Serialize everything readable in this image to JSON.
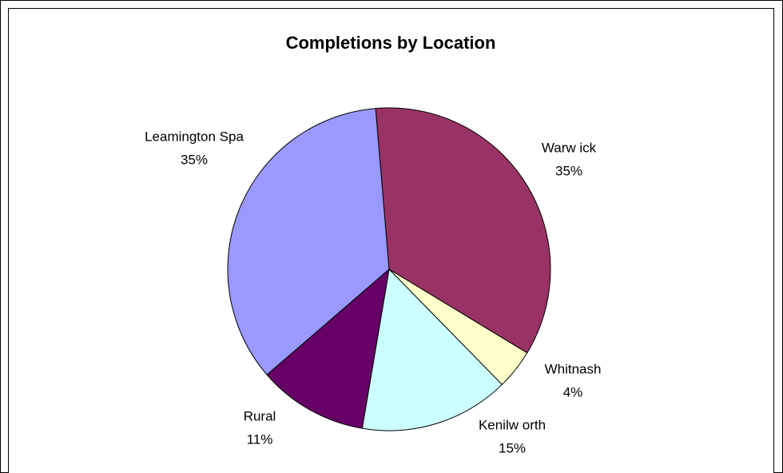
{
  "chart_data": {
    "type": "pie",
    "title": "Completions by Location",
    "categories": [
      "Warw ick",
      "Whitnash",
      "Kenilw orth",
      "Rural",
      "Leamington Spa"
    ],
    "values": [
      35,
      4,
      15,
      11,
      35
    ],
    "value_labels": [
      "35%",
      "4%",
      "15%",
      "11%",
      "35%"
    ],
    "colors": [
      "#993366",
      "#ffffcc",
      "#ccffff",
      "#660066",
      "#9999ff"
    ]
  }
}
